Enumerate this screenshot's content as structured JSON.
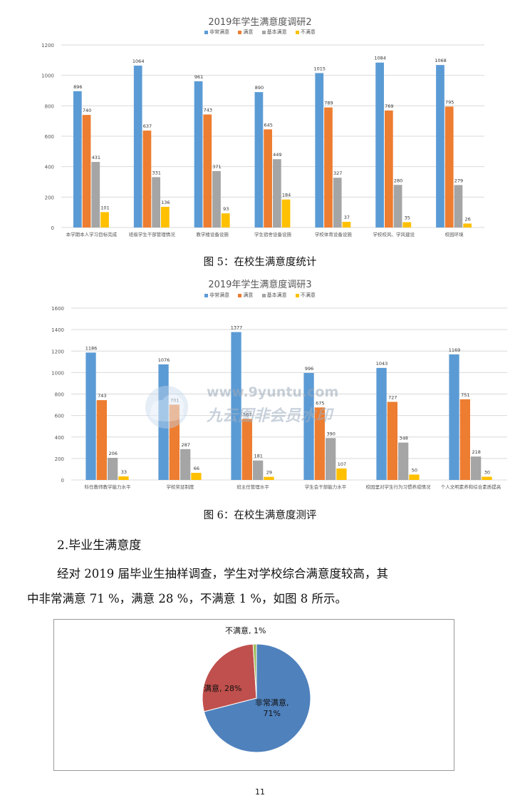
{
  "chart_data": [
    {
      "type": "bar",
      "title": "2019年学生满意度调研2",
      "legend": [
        "非常满意",
        "满意",
        "基本满意",
        "不满意"
      ],
      "legend_position": "top",
      "categories": [
        "本学期本人学习目标完成",
        "班级学生干部管理情况",
        "教学楼设备设施",
        "学生宿舍设备设施",
        "学校体育设备设施",
        "学校校风、学风建设",
        "校园环境"
      ],
      "series": [
        {
          "name": "非常满意",
          "color": "#5b9bd5",
          "values": [
            896,
            1064,
            961,
            890,
            1015,
            1084,
            1068
          ]
        },
        {
          "name": "满意",
          "color": "#ed7d31",
          "values": [
            740,
            637,
            743,
            645,
            789,
            769,
            795
          ]
        },
        {
          "name": "基本满意",
          "color": "#a5a5a5",
          "values": [
            431,
            331,
            371,
            449,
            327,
            280,
            279
          ]
        },
        {
          "name": "不满意",
          "color": "#ffc000",
          "values": [
            101,
            136,
            93,
            184,
            37,
            35,
            26
          ]
        }
      ],
      "ylim": [
        0,
        1200
      ],
      "yticks": [
        0,
        200,
        400,
        600,
        800,
        1000,
        1200
      ],
      "grid": true
    },
    {
      "type": "bar",
      "title": "2019年学生满意度调研3",
      "legend": [
        "非常满意",
        "满意",
        "基本满意",
        "不满意"
      ],
      "legend_position": "top",
      "categories": [
        "科任教师教学能力水平",
        "学校奖惩制度",
        "班主任管理水平",
        "学生会干部能力水平",
        "校园里对学生行为习惯养成情况",
        "个人文明素养和综合素质提高"
      ],
      "series": [
        {
          "name": "非常满意",
          "color": "#5b9bd5",
          "values": [
            1186,
            1076,
            1377,
            996,
            1043,
            1169
          ]
        },
        {
          "name": "满意",
          "color": "#ed7d31",
          "values": [
            743,
            701,
            567,
            675,
            727,
            751
          ]
        },
        {
          "name": "基本满意",
          "color": "#a5a5a5",
          "values": [
            206,
            287,
            181,
            390,
            348,
            218
          ]
        },
        {
          "name": "不满意",
          "color": "#ffc000",
          "values": [
            33,
            66,
            29,
            107,
            50,
            30
          ]
        }
      ],
      "ylim": [
        0,
        1600
      ],
      "yticks": [
        0,
        200,
        400,
        600,
        800,
        1000,
        1200,
        1400,
        1600
      ],
      "grid": true
    },
    {
      "type": "pie",
      "categories": [
        "非常满意",
        "满意",
        "不满意"
      ],
      "values": [
        71,
        28,
        1
      ],
      "colors": [
        "#4f81bd",
        "#c0504d",
        "#9bbb59"
      ],
      "labels": [
        "非常满意, 71%",
        "满意, 28%",
        "不满意, 1%"
      ]
    }
  ],
  "captions": {
    "fig5": "图 5：在校生满意度统计",
    "fig6": "图 6：在校生满意度测评"
  },
  "section": {
    "heading": "2.毕业生满意度",
    "para_line1": "经对 2019 届毕业生抽样调查，学生对学校综合满意度较高，其",
    "para_line2": "中非常满意 71 %，满意 28 %，不满意  1 %，如图 8 所示。"
  },
  "pie_labels": {
    "very": "非常满意,",
    "very_pct": "71%",
    "satisfied": "满意, 28%",
    "unsatisfied": "不满意, 1%"
  },
  "watermark": {
    "url": "www.9yuntu.com",
    "text": "九云图非会员水印"
  },
  "page_number": "11"
}
